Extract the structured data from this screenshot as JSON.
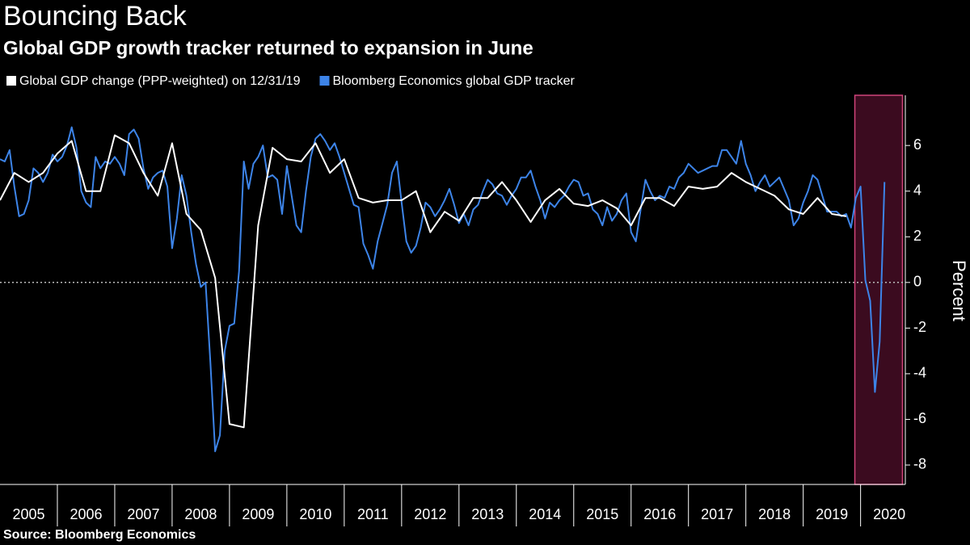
{
  "chart_data": {
    "type": "line",
    "title": "Bouncing Back",
    "subtitle": "Global GDP growth tracker returned to expansion in June",
    "source": "Source: Bloomberg Economics",
    "y_label": "Percent",
    "xlim": [
      2005,
      2020.78
    ],
    "xticks": [
      2005,
      2006,
      2007,
      2008,
      2009,
      2010,
      2011,
      2012,
      2013,
      2014,
      2015,
      2016,
      2017,
      2018,
      2019,
      2020
    ],
    "ylim": [
      -8.85,
      8.2
    ],
    "yticks": [
      -8,
      -6,
      -4,
      -2,
      0,
      2,
      4,
      6
    ],
    "zero_line": true,
    "highlight": {
      "x": [
        2019.9,
        2020.73
      ],
      "color": "#3b0b1f",
      "edge_color": "#d0447a"
    },
    "series": [
      {
        "name": "Global GDP change (PPP-weighted) on 12/31/19",
        "color": "#ffffff",
        "x": [
          2005,
          2005.25,
          2005.5,
          2005.75,
          2006,
          2006.25,
          2006.5,
          2006.75,
          2007,
          2007.25,
          2007.5,
          2007.75,
          2008,
          2008.25,
          2008.5,
          2008.75,
          2009,
          2009.25,
          2009.5,
          2009.75,
          2010,
          2010.25,
          2010.5,
          2010.75,
          2011,
          2011.25,
          2011.5,
          2011.75,
          2012,
          2012.25,
          2012.5,
          2012.75,
          2013,
          2013.25,
          2013.5,
          2013.75,
          2014,
          2014.25,
          2014.5,
          2014.75,
          2015,
          2015.25,
          2015.5,
          2015.75,
          2016,
          2016.25,
          2016.5,
          2016.75,
          2017,
          2017.25,
          2017.5,
          2017.75,
          2018,
          2018.25,
          2018.5,
          2018.75,
          2019,
          2019.25,
          2019.5,
          2019.75
        ],
        "values": [
          3.6,
          4.8,
          4.4,
          4.8,
          5.65,
          6.2,
          4.0,
          4.0,
          6.45,
          6.1,
          4.8,
          3.8,
          6.1,
          3.0,
          2.3,
          0.2,
          -6.2,
          -6.35,
          2.5,
          5.9,
          5.4,
          5.3,
          6.1,
          4.8,
          5.4,
          3.7,
          3.5,
          3.6,
          3.6,
          4.0,
          2.2,
          3.1,
          2.7,
          3.7,
          3.7,
          4.4,
          3.6,
          2.65,
          3.6,
          4.1,
          3.45,
          3.35,
          3.6,
          3.25,
          2.5,
          3.7,
          3.7,
          3.35,
          4.2,
          4.1,
          4.2,
          4.8,
          4.4,
          4.1,
          3.8,
          3.2,
          3.0,
          3.7,
          3.0,
          2.9
        ]
      },
      {
        "name": "Bloomberg Economics global GDP tracker",
        "color": "#3d84e8",
        "x": [
          2005,
          2005.083,
          2005.167,
          2005.25,
          2005.333,
          2005.417,
          2005.5,
          2005.583,
          2005.667,
          2005.75,
          2005.833,
          2005.917,
          2006,
          2006.083,
          2006.167,
          2006.25,
          2006.333,
          2006.417,
          2006.5,
          2006.583,
          2006.667,
          2006.75,
          2006.833,
          2006.917,
          2007,
          2007.083,
          2007.167,
          2007.25,
          2007.333,
          2007.417,
          2007.5,
          2007.583,
          2007.667,
          2007.75,
          2007.833,
          2007.917,
          2008,
          2008.083,
          2008.167,
          2008.25,
          2008.333,
          2008.417,
          2008.5,
          2008.583,
          2008.667,
          2008.75,
          2008.833,
          2008.917,
          2009,
          2009.083,
          2009.167,
          2009.25,
          2009.333,
          2009.417,
          2009.5,
          2009.583,
          2009.667,
          2009.75,
          2009.833,
          2009.917,
          2010,
          2010.083,
          2010.167,
          2010.25,
          2010.333,
          2010.417,
          2010.5,
          2010.583,
          2010.667,
          2010.75,
          2010.833,
          2010.917,
          2011,
          2011.083,
          2011.167,
          2011.25,
          2011.333,
          2011.417,
          2011.5,
          2011.583,
          2011.667,
          2011.75,
          2011.833,
          2011.917,
          2012,
          2012.083,
          2012.167,
          2012.25,
          2012.333,
          2012.417,
          2012.5,
          2012.583,
          2012.667,
          2012.75,
          2012.833,
          2012.917,
          2013,
          2013.083,
          2013.167,
          2013.25,
          2013.333,
          2013.417,
          2013.5,
          2013.583,
          2013.667,
          2013.75,
          2013.833,
          2013.917,
          2014,
          2014.083,
          2014.167,
          2014.25,
          2014.333,
          2014.417,
          2014.5,
          2014.583,
          2014.667,
          2014.75,
          2014.833,
          2014.917,
          2015,
          2015.083,
          2015.167,
          2015.25,
          2015.333,
          2015.417,
          2015.5,
          2015.583,
          2015.667,
          2015.75,
          2015.833,
          2015.917,
          2016,
          2016.083,
          2016.167,
          2016.25,
          2016.333,
          2016.417,
          2016.5,
          2016.583,
          2016.667,
          2016.75,
          2016.833,
          2016.917,
          2017,
          2017.083,
          2017.167,
          2017.25,
          2017.333,
          2017.417,
          2017.5,
          2017.583,
          2017.667,
          2017.75,
          2017.833,
          2017.917,
          2018,
          2018.083,
          2018.167,
          2018.25,
          2018.333,
          2018.417,
          2018.5,
          2018.583,
          2018.667,
          2018.75,
          2018.833,
          2018.917,
          2019,
          2019.083,
          2019.167,
          2019.25,
          2019.333,
          2019.417,
          2019.5,
          2019.583,
          2019.667,
          2019.75,
          2019.833,
          2019.917,
          2020,
          2020.083,
          2020.167,
          2020.25,
          2020.333,
          2020.417
        ],
        "values": [
          5.4,
          5.3,
          5.8,
          4.2,
          2.9,
          3.0,
          3.6,
          5.0,
          4.8,
          4.4,
          4.8,
          5.6,
          5.3,
          5.5,
          6.0,
          6.8,
          5.9,
          4.0,
          3.5,
          3.3,
          5.5,
          5.0,
          5.3,
          5.2,
          5.5,
          5.2,
          4.7,
          6.5,
          6.7,
          6.3,
          5.0,
          4.1,
          4.6,
          4.8,
          4.9,
          4.2,
          1.5,
          2.8,
          4.7,
          3.8,
          2.2,
          0.8,
          -0.2,
          0.0,
          -3.5,
          -7.4,
          -6.7,
          -3.0,
          -1.9,
          -1.8,
          0.5,
          5.3,
          4.1,
          5.2,
          5.5,
          6.0,
          4.6,
          4.7,
          4.5,
          3.0,
          5.1,
          3.8,
          2.5,
          2.2,
          4.0,
          5.5,
          6.3,
          6.5,
          6.2,
          5.8,
          6.1,
          5.5,
          4.8,
          4.1,
          3.4,
          3.3,
          1.7,
          1.2,
          0.6,
          1.8,
          2.6,
          3.4,
          4.8,
          5.3,
          3.5,
          1.8,
          1.3,
          1.6,
          2.4,
          3.5,
          3.3,
          2.9,
          3.2,
          3.6,
          4.1,
          3.4,
          2.6,
          3.0,
          2.5,
          3.2,
          3.4,
          4.0,
          4.5,
          4.3,
          3.9,
          3.8,
          3.4,
          3.8,
          4.1,
          4.6,
          4.6,
          4.9,
          4.2,
          3.6,
          2.8,
          3.5,
          3.3,
          3.6,
          3.8,
          4.2,
          4.5,
          4.4,
          3.8,
          3.9,
          3.2,
          3.0,
          2.5,
          3.3,
          2.7,
          3.0,
          3.6,
          3.9,
          2.2,
          1.8,
          3.2,
          4.5,
          4.0,
          3.6,
          3.8,
          3.7,
          4.2,
          4.1,
          4.6,
          4.8,
          5.2,
          5.0,
          4.8,
          4.9,
          5.0,
          5.1,
          5.1,
          5.8,
          5.8,
          5.5,
          5.2,
          6.2,
          5.2,
          4.7,
          4.0,
          4.4,
          4.7,
          4.2,
          4.4,
          4.6,
          4.1,
          3.6,
          2.5,
          2.8,
          3.5,
          4.0,
          4.7,
          4.5,
          3.8,
          3.1,
          3.1,
          3.1,
          2.9,
          3.0,
          2.4,
          3.7,
          4.2,
          0.1,
          -0.8,
          -4.8,
          -2.6,
          4.4
        ]
      }
    ]
  }
}
